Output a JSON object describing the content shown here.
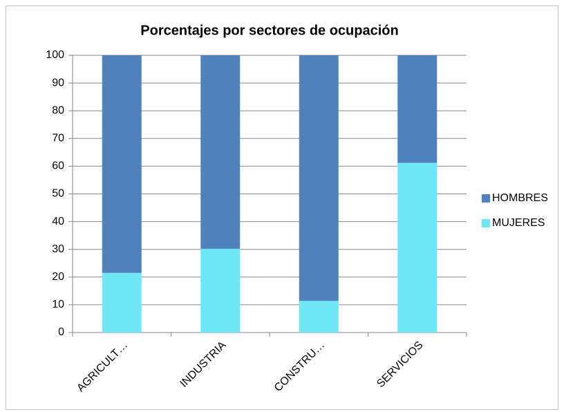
{
  "chart_data": {
    "type": "stacked_bar",
    "title": "Porcentajes por sectores de ocupación",
    "categories": [
      "AGRICULT…",
      "INDUSTRIA",
      "CONSTRU…",
      "SERVICIOS"
    ],
    "series": [
      {
        "name": "MUJERES",
        "color": "#6ee8f6",
        "values": [
          21.5,
          30.2,
          11.4,
          61.2
        ]
      },
      {
        "name": "HOMBRES",
        "color": "#4f81bd",
        "values": [
          78.5,
          69.8,
          88.6,
          38.8
        ]
      }
    ],
    "ylim": [
      0,
      100
    ],
    "yticks": [
      0,
      10,
      20,
      30,
      40,
      50,
      60,
      70,
      80,
      90,
      100
    ],
    "grid": true,
    "legend": "right"
  }
}
